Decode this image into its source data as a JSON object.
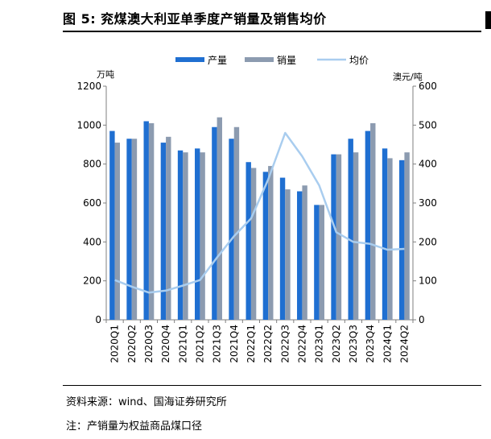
{
  "header": {
    "title": "图 5:  兖煤澳大利亚单季度产销量及销售均价"
  },
  "footer": {
    "source": "资料来源：wind、国海证券研究所",
    "note": "注：产销量为权益商品煤口径"
  },
  "colors": {
    "production": "#1f6fd1",
    "sales": "#8c9bb0",
    "price": "#a9cdef",
    "axis": "#7f7f7f"
  },
  "chart_data": {
    "type": "bar",
    "categories": [
      "2020Q1",
      "2020Q2",
      "2020Q3",
      "2020Q4",
      "2021Q1",
      "2021Q2",
      "2021Q3",
      "2021Q4",
      "2022Q1",
      "2022Q2",
      "2022Q3",
      "2022Q4",
      "2023Q1",
      "2023Q2",
      "2023Q3",
      "2023Q4",
      "2024Q1",
      "2024Q2"
    ],
    "series": [
      {
        "name": "产量",
        "kind": "bar",
        "axis": "left",
        "values": [
          970,
          930,
          1020,
          910,
          870,
          880,
          990,
          930,
          810,
          760,
          730,
          660,
          590,
          850,
          930,
          970,
          880,
          820
        ]
      },
      {
        "name": "销量",
        "kind": "bar",
        "axis": "left",
        "values": [
          910,
          930,
          1010,
          940,
          860,
          860,
          1040,
          990,
          780,
          790,
          670,
          690,
          590,
          850,
          860,
          1010,
          830,
          860
        ]
      },
      {
        "name": "均价",
        "kind": "line",
        "axis": "right",
        "values": [
          102,
          85,
          70,
          75,
          88,
          102,
          160,
          215,
          260,
          360,
          480,
          420,
          345,
          225,
          200,
          195,
          180,
          182
        ]
      }
    ],
    "y_left": {
      "label": "万吨",
      "min": 0,
      "max": 1200,
      "ticks": [
        0,
        200,
        400,
        600,
        800,
        1000,
        1200
      ]
    },
    "y_right": {
      "label": "澳元/吨",
      "min": 0,
      "max": 600,
      "ticks": [
        0,
        100,
        200,
        300,
        400,
        500,
        600
      ]
    },
    "legend": {
      "placement": "top-center"
    },
    "grid": false
  }
}
